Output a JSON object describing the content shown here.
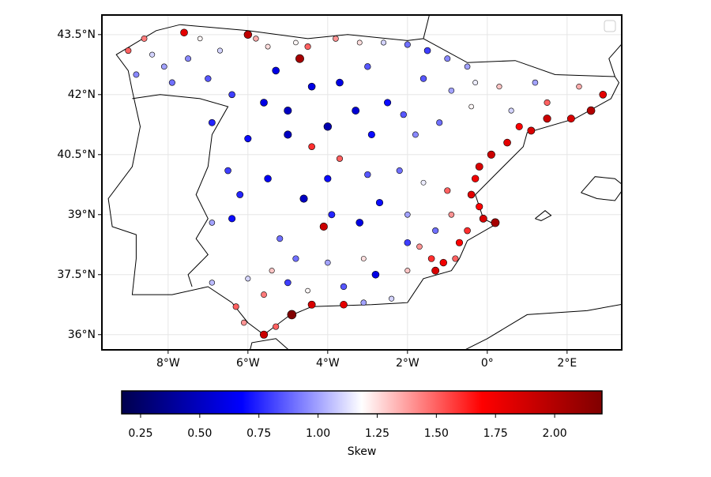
{
  "chart_data": {
    "type": "scatter",
    "x": [
      -8.6,
      -9.0,
      -8.4,
      -8.8,
      -8.1,
      -7.6,
      -7.5,
      -7.9,
      -7.0,
      -7.2,
      -6.7,
      -6.0,
      -5.8,
      -5.5,
      -4.8,
      -4.5,
      -4.7,
      -3.8,
      -3.2,
      -2.6,
      -2.0,
      -1.5,
      -1.0,
      -0.5,
      -6.4,
      -5.6,
      -5.0,
      -4.4,
      -3.7,
      -4.0,
      -5.0,
      -6.0,
      -3.3,
      -2.5,
      -4.4,
      -5.3,
      -3.0,
      -6.9,
      -1.6,
      -0.9,
      -0.4,
      -1.2,
      -0.3,
      0.3,
      -1.8,
      -2.1,
      0.8,
      1.1,
      1.5,
      2.1,
      2.6,
      2.9,
      1.5,
      0.6,
      1.2,
      2.3,
      0.5,
      0.1,
      -0.2,
      -0.3,
      -0.4,
      -0.2,
      -0.1,
      -0.5,
      0.2,
      -0.7,
      -0.9,
      -1.0,
      -1.3,
      -1.1,
      -1.4,
      -1.7,
      -1.3,
      -0.8,
      -2.0,
      -2.0,
      -2.4,
      -3.1,
      -3.6,
      -4.4,
      -4.9,
      -5.3,
      -5.6,
      -6.1,
      -6.3,
      -6.9,
      -6.0,
      -5.4,
      -4.8,
      -4.0,
      -3.6,
      -2.8,
      -3.1,
      -4.5,
      -5.6,
      -5.0,
      -6.4,
      -6.9,
      -6.2,
      -5.5,
      -6.5,
      -4.0,
      -3.7,
      -3.0,
      -2.2,
      -2.7,
      -3.9,
      -4.1,
      -3.2,
      -2.0,
      -5.2,
      -4.6,
      -1.6,
      -2.9
    ],
    "y": [
      43.4,
      43.1,
      43.0,
      42.5,
      42.7,
      43.55,
      42.9,
      42.3,
      42.4,
      43.4,
      43.1,
      43.5,
      43.4,
      43.2,
      43.3,
      43.2,
      42.9,
      43.4,
      43.3,
      43.3,
      43.25,
      43.1,
      42.9,
      42.7,
      42.0,
      41.8,
      41.6,
      42.2,
      42.3,
      41.2,
      41.0,
      40.9,
      41.6,
      41.8,
      40.7,
      42.6,
      42.7,
      41.3,
      42.4,
      42.1,
      41.7,
      41.3,
      42.3,
      42.2,
      41.0,
      41.5,
      41.2,
      41.1,
      41.4,
      41.4,
      41.6,
      42.0,
      41.8,
      41.6,
      42.3,
      42.2,
      40.8,
      40.5,
      40.2,
      39.9,
      39.5,
      39.2,
      38.9,
      38.6,
      38.8,
      38.3,
      39.0,
      39.6,
      38.6,
      37.8,
      37.9,
      38.2,
      37.6,
      37.9,
      37.6,
      38.3,
      36.9,
      36.8,
      36.75,
      36.75,
      36.5,
      36.2,
      36.0,
      36.3,
      36.7,
      37.3,
      37.4,
      37.6,
      37.9,
      37.8,
      37.2,
      37.5,
      37.9,
      37.1,
      37.0,
      37.3,
      38.9,
      38.8,
      39.5,
      39.9,
      40.1,
      39.9,
      40.4,
      40.0,
      40.1,
      39.3,
      39.0,
      38.7,
      38.8,
      39.0,
      38.4,
      39.4,
      39.8,
      41.0
    ],
    "values": [
      1.45,
      1.5,
      1.1,
      0.95,
      1.0,
      1.8,
      0.95,
      0.9,
      0.85,
      1.2,
      1.1,
      1.95,
      1.35,
      1.25,
      1.2,
      1.5,
      2.05,
      1.4,
      1.25,
      1.1,
      0.9,
      0.8,
      0.95,
      1.0,
      0.8,
      0.6,
      0.5,
      0.6,
      0.6,
      0.45,
      0.5,
      0.7,
      0.55,
      0.7,
      1.6,
      0.6,
      0.85,
      0.75,
      0.85,
      1.0,
      1.2,
      0.9,
      1.15,
      1.3,
      0.95,
      0.85,
      1.7,
      1.85,
      1.9,
      1.85,
      2.0,
      1.8,
      1.5,
      1.1,
      1.0,
      1.35,
      1.8,
      1.9,
      1.85,
      1.75,
      1.8,
      1.7,
      1.85,
      1.6,
      2.05,
      1.7,
      1.4,
      1.5,
      0.9,
      1.75,
      1.6,
      1.4,
      1.85,
      1.5,
      1.3,
      0.8,
      1.1,
      1.0,
      1.8,
      1.85,
      2.2,
      1.5,
      1.9,
      1.4,
      1.5,
      1.05,
      1.1,
      1.3,
      0.9,
      1.0,
      0.85,
      0.6,
      1.25,
      1.2,
      1.45,
      0.8,
      0.7,
      1.0,
      0.75,
      0.65,
      0.8,
      0.7,
      1.5,
      0.85,
      0.9,
      0.7,
      0.75,
      1.9,
      0.6,
      1.0,
      0.9,
      0.5,
      1.15,
      0.7
    ],
    "xlim": [
      -9.66,
      3.37
    ],
    "ylim": [
      35.62,
      43.99
    ],
    "xticks": [
      {
        "value": -8,
        "label": "8°W"
      },
      {
        "value": -6,
        "label": "6°W"
      },
      {
        "value": -4,
        "label": "4°W"
      },
      {
        "value": -2,
        "label": "2°W"
      },
      {
        "value": 0,
        "label": "0°"
      },
      {
        "value": 2,
        "label": "2°E"
      }
    ],
    "yticks": [
      {
        "value": 43.5,
        "label": "43.5°N"
      },
      {
        "value": 42,
        "label": "42°N"
      },
      {
        "value": 40.5,
        "label": "40.5°N"
      },
      {
        "value": 39,
        "label": "39°N"
      },
      {
        "value": 37.5,
        "label": "37.5°N"
      },
      {
        "value": 36,
        "label": "36°N"
      }
    ],
    "grid": true,
    "legend": "upper right",
    "colormap": [
      "#00004d",
      "#0000ff",
      "#ffffff",
      "#ff0000",
      "#800000"
    ],
    "colorbar": {
      "label": "Skew",
      "lim": [
        0.17,
        2.2
      ],
      "ticks": [
        0.25,
        {
          "value": 0.5,
          "label": "0.50"
        },
        0.75,
        {
          "value": 1,
          "label": "1.00"
        },
        1.25,
        {
          "value": 1.5,
          "label": "1.50"
        },
        1.75,
        {
          "value": 2,
          "label": "2.00"
        }
      ]
    }
  }
}
